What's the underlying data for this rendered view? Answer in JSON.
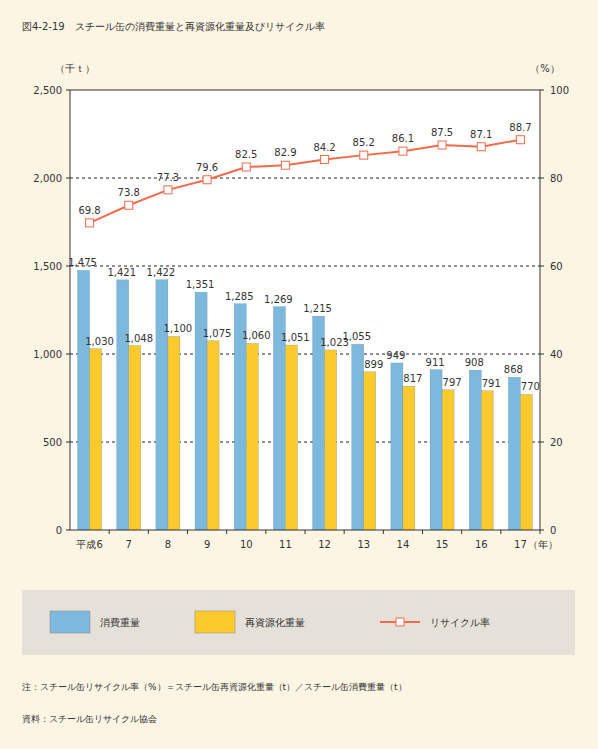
{
  "chart_data": {
    "type": "bar",
    "title": "図4-2-19　スチール缶の消費重量と再資源化重量及びリサイクル率",
    "y_label": "（千ｔ）",
    "y2_label": "（%）",
    "x_label": "（年）",
    "categories": [
      "平成6",
      "7",
      "8",
      "9",
      "10",
      "11",
      "12",
      "13",
      "14",
      "15",
      "16",
      "17"
    ],
    "series": [
      {
        "name": "消費重量",
        "color": "#7db9dc",
        "values": [
          1475,
          1421,
          1422,
          1351,
          1285,
          1269,
          1215,
          1055,
          949,
          911,
          908,
          868
        ],
        "value_labels": [
          "1,475",
          "1,421",
          "1,422",
          "1,351",
          "1,285",
          "1,269",
          "1,215",
          "1,055",
          "949",
          "911",
          "908",
          "868"
        ]
      },
      {
        "name": "再資源化重量",
        "color": "#fcca2c",
        "values": [
          1030,
          1048,
          1100,
          1075,
          1060,
          1051,
          1023,
          899,
          817,
          797,
          791,
          770
        ],
        "value_labels": [
          "1,030",
          "1,048",
          "1,100",
          "1,075",
          "1,060",
          "1,051",
          "1,023",
          "899",
          "817",
          "797",
          "791",
          "770"
        ]
      },
      {
        "name": "リサイクル率",
        "type": "line",
        "axis": "y2",
        "color": "#f26a4a",
        "marker": "square",
        "values": [
          69.8,
          73.8,
          77.3,
          79.6,
          82.5,
          82.9,
          84.2,
          85.2,
          86.1,
          87.5,
          87.1,
          88.7
        ]
      }
    ],
    "ylim": [
      0,
      2500
    ],
    "yticks": [
      0,
      500,
      {
        "value": 1000,
        "label": "1,000"
      },
      {
        "value": 1500,
        "label": "1,500"
      },
      {
        "value": 2000,
        "label": "2,000"
      },
      {
        "value": 2500,
        "label": "2,500"
      }
    ],
    "y2lim": [
      0,
      100
    ],
    "y2ticks": [
      0,
      20,
      40,
      60,
      80,
      100
    ],
    "grid": true,
    "data_labels": true,
    "legend": "bottom",
    "notes": [
      "注：スチール缶リサイクル率（%）＝スチール缶再資源化重量（t）／スチール缶消費重量（t）",
      "資料：スチール缶リサイクル協会"
    ]
  }
}
